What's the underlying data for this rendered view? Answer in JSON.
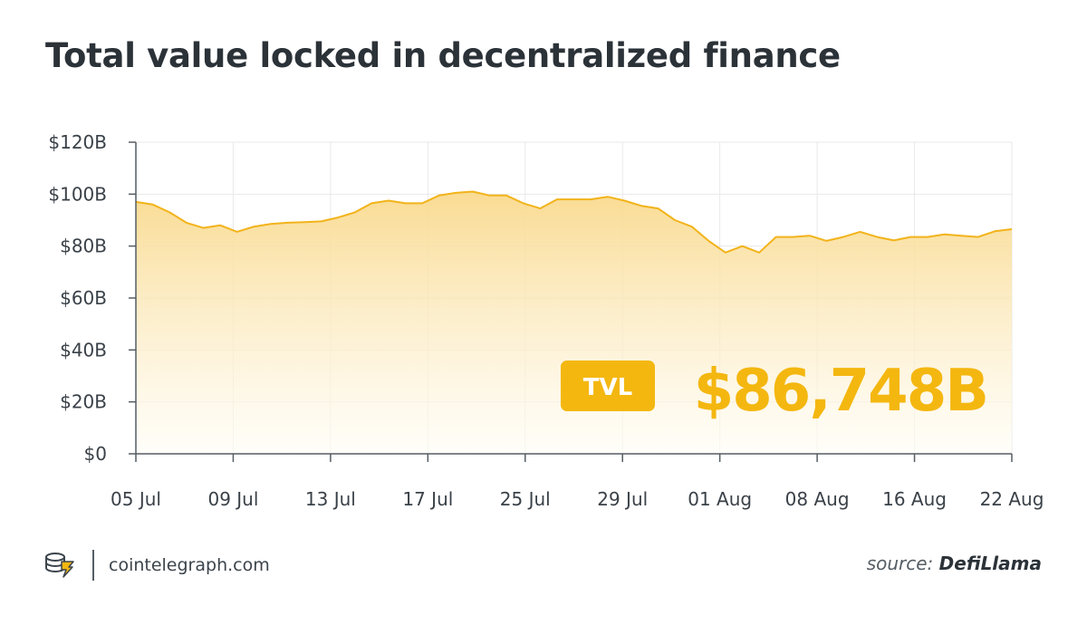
{
  "title": "Total value locked in decentralized finance",
  "badge": {
    "label": "TVL",
    "value": "$86,748B"
  },
  "footer": {
    "site": "cointelegraph.com",
    "logo_icon": "cointelegraph-logo-icon"
  },
  "source": {
    "prefix": "source:",
    "name": "DefiLlama"
  },
  "colors": {
    "accent": "#f4b710",
    "line": "#f2b31a",
    "area_top": "#f9d98c",
    "area_bottom": "#fffdf5",
    "grid": "#e9e9e9",
    "axis": "#555d64"
  },
  "chart_data": {
    "type": "area",
    "title": "Total value locked in decentralized finance",
    "xlabel": "",
    "ylabel": "",
    "ylim": [
      0,
      120
    ],
    "y_ticks": [
      0,
      20,
      40,
      60,
      80,
      100,
      120
    ],
    "y_tick_labels": [
      "$0",
      "$20B",
      "$40B",
      "$60B",
      "$80B",
      "$100B",
      "$120B"
    ],
    "x_tick_labels": [
      "05 Jul",
      "09 Jul",
      "13 Jul",
      "17 Jul",
      "25 Jul",
      "29 Jul",
      "01 Aug",
      "08 Aug",
      "16 Aug",
      "22 Aug"
    ],
    "grid": true,
    "series": [
      {
        "values": [
          97,
          96,
          93,
          89,
          87,
          88,
          85.5,
          87.5,
          88.5,
          89,
          89.2,
          89.5,
          91,
          93,
          96.5,
          97.5,
          96.5,
          96.5,
          99.5,
          100.5,
          101,
          99.5,
          99.5,
          96.5,
          94.5,
          98,
          98,
          98,
          99,
          97.5,
          95.5,
          94.5,
          90,
          87.5,
          82,
          77.5,
          80,
          77.5,
          83.5,
          83.5,
          84,
          82,
          83.5,
          85.5,
          83.5,
          82.2,
          83.5,
          83.5,
          84.5,
          84,
          83.5,
          85.7,
          86.5
        ]
      }
    ]
  }
}
